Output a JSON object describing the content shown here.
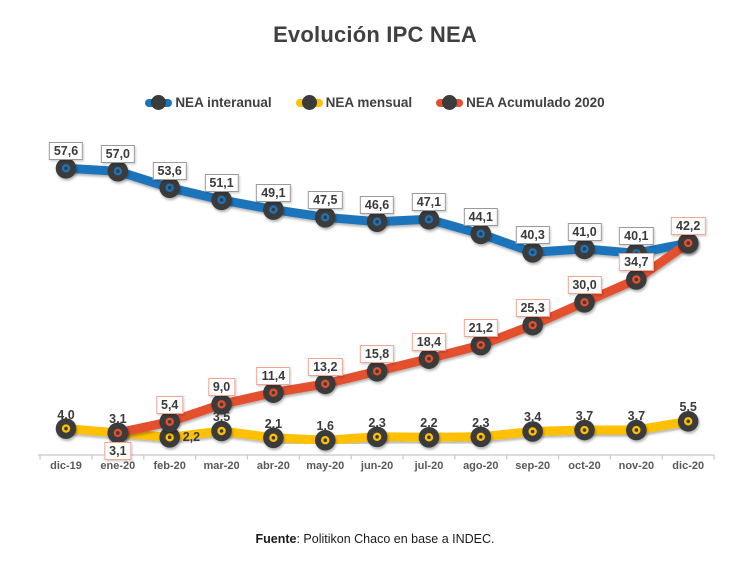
{
  "chart_data": {
    "type": "line",
    "title": "Evolución IPC NEA",
    "categories": [
      "dic-19",
      "ene-20",
      "feb-20",
      "mar-20",
      "abr-20",
      "may-20",
      "jun-20",
      "jul-20",
      "ago-20",
      "sep-20",
      "oct-20",
      "nov-20",
      "dic-20"
    ],
    "series": [
      {
        "name": "NEA interanual",
        "color": "#1C74BB",
        "values": [
          57.6,
          57.0,
          53.6,
          51.1,
          49.1,
          47.5,
          46.6,
          47.1,
          44.1,
          40.3,
          41.0,
          40.1,
          42.2
        ],
        "labels": [
          "57,6",
          "57,0",
          "53,6",
          "51,1",
          "49,1",
          "47,5",
          "46,6",
          "47,1",
          "44,1",
          "40,3",
          "41,0",
          "40,1",
          null
        ],
        "label_box": true,
        "label_border": "#9A9A9A",
        "label_pos": {}
      },
      {
        "name": "NEA mensual",
        "color": "#FFC000",
        "values": [
          4.0,
          3.1,
          2.2,
          3.5,
          2.1,
          1.6,
          2.3,
          2.2,
          2.3,
          3.4,
          3.7,
          3.7,
          5.5
        ],
        "labels": [
          "4,0",
          "3,1",
          "2,2",
          "3,5",
          "2,1",
          "1,6",
          "2,3",
          "2,2",
          "2,3",
          "3,4",
          "3,7",
          "3,7",
          "5,5"
        ],
        "label_box": false,
        "label_border": null,
        "label_pos": {
          "2": "right"
        }
      },
      {
        "name": "NEA Acumulado 2020",
        "color": "#E4502E",
        "values": [
          null,
          3.1,
          5.4,
          9.0,
          11.4,
          13.2,
          15.8,
          18.4,
          21.2,
          25.3,
          30.0,
          34.7,
          42.2
        ],
        "labels": [
          null,
          "3,1",
          "5,4",
          "9,0",
          "11,4",
          "13,2",
          "15,8",
          "18,4",
          "21,2",
          "25,3",
          "30,0",
          "34,7",
          "42,2"
        ],
        "label_box": true,
        "label_border": "#F2A593",
        "label_pos": {
          "1": "below"
        }
      }
    ],
    "point_color": "#3B3B3B",
    "legend_position": "top",
    "grid": false,
    "y_axis_visible": false,
    "ylim": [
      0,
      62
    ],
    "x_axis_color": "#C8C8C8"
  },
  "footer": {
    "source_label": "Fuente",
    "source_rest": ": Politikon Chaco en base a INDEC."
  }
}
